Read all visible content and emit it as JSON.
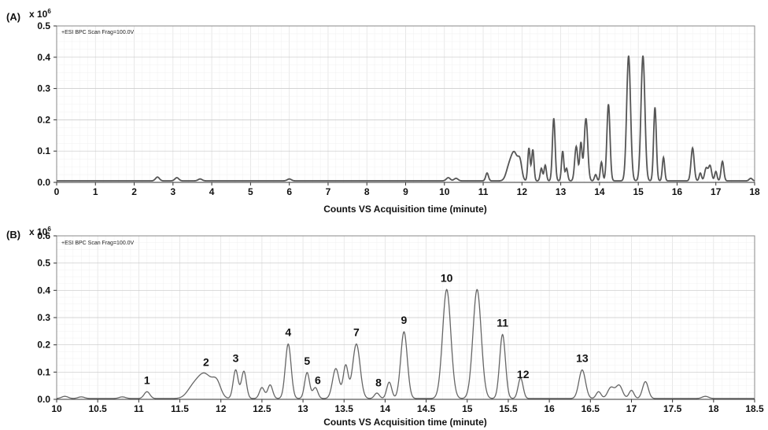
{
  "chart_data": [
    {
      "type": "line",
      "panel_label": "(A)",
      "scale_label": "x 10",
      "scale_exponent": "6",
      "legend": "+ESI BPC Scan Frag=100.0V",
      "xlabel": "Counts VS Acquisition time (minute)",
      "xlim": [
        0,
        18
      ],
      "ylim": [
        0,
        0.5
      ],
      "xticks": [
        "0",
        "1",
        "2",
        "3",
        "4",
        "5",
        "6",
        "7",
        "8",
        "9",
        "10",
        "11",
        "12",
        "13",
        "14",
        "15",
        "16",
        "17",
        "18"
      ],
      "yticks": [
        "0.0",
        "0.1",
        "0.2",
        "0.3",
        "0.4",
        "0.5"
      ],
      "grid": true,
      "line_color": "#555555",
      "baseline": 0.005,
      "peaks": [
        {
          "x": 2.6,
          "y": 0.012,
          "w": 0.05
        },
        {
          "x": 3.1,
          "y": 0.01,
          "w": 0.05
        },
        {
          "x": 3.7,
          "y": 0.006,
          "w": 0.05
        },
        {
          "x": 6.0,
          "y": 0.006,
          "w": 0.05
        },
        {
          "x": 10.1,
          "y": 0.01,
          "w": 0.05
        },
        {
          "x": 10.3,
          "y": 0.008,
          "w": 0.05
        },
        {
          "x": 11.1,
          "y": 0.025,
          "w": 0.035
        },
        {
          "x": 11.65,
          "y": 0.03,
          "w": 0.07
        },
        {
          "x": 11.8,
          "y": 0.09,
          "w": 0.09
        },
        {
          "x": 11.95,
          "y": 0.05,
          "w": 0.05
        },
        {
          "x": 12.18,
          "y": 0.105,
          "w": 0.03
        },
        {
          "x": 12.28,
          "y": 0.1,
          "w": 0.03
        },
        {
          "x": 12.5,
          "y": 0.04,
          "w": 0.03
        },
        {
          "x": 12.6,
          "y": 0.05,
          "w": 0.03
        },
        {
          "x": 12.82,
          "y": 0.2,
          "w": 0.035
        },
        {
          "x": 13.05,
          "y": 0.095,
          "w": 0.03
        },
        {
          "x": 13.15,
          "y": 0.04,
          "w": 0.03
        },
        {
          "x": 13.4,
          "y": 0.11,
          "w": 0.04
        },
        {
          "x": 13.52,
          "y": 0.12,
          "w": 0.03
        },
        {
          "x": 13.65,
          "y": 0.2,
          "w": 0.045
        },
        {
          "x": 13.9,
          "y": 0.02,
          "w": 0.03
        },
        {
          "x": 14.05,
          "y": 0.06,
          "w": 0.03
        },
        {
          "x": 14.23,
          "y": 0.245,
          "w": 0.04
        },
        {
          "x": 14.75,
          "y": 0.4,
          "w": 0.05
        },
        {
          "x": 15.12,
          "y": 0.4,
          "w": 0.05
        },
        {
          "x": 15.43,
          "y": 0.235,
          "w": 0.035
        },
        {
          "x": 15.65,
          "y": 0.075,
          "w": 0.03
        },
        {
          "x": 16.4,
          "y": 0.105,
          "w": 0.04
        },
        {
          "x": 16.6,
          "y": 0.025,
          "w": 0.03
        },
        {
          "x": 16.75,
          "y": 0.04,
          "w": 0.04
        },
        {
          "x": 16.85,
          "y": 0.048,
          "w": 0.04
        },
        {
          "x": 17.0,
          "y": 0.03,
          "w": 0.03
        },
        {
          "x": 17.17,
          "y": 0.062,
          "w": 0.035
        },
        {
          "x": 17.9,
          "y": 0.008,
          "w": 0.04
        }
      ]
    },
    {
      "type": "line",
      "panel_label": "(B)",
      "scale_label": "x 10",
      "scale_exponent": "6",
      "legend": "+ESI BPC Scan Frag=100.0V",
      "xlabel": "Counts VS Acquisition time (minute)",
      "xlim": [
        10,
        18.5
      ],
      "ylim": [
        0,
        0.6
      ],
      "xticks": [
        "10",
        "10.5",
        "11",
        "11.5",
        "12",
        "12.5",
        "13",
        "13.5",
        "14",
        "14.5",
        "15",
        "15.5",
        "16",
        "16.5",
        "17",
        "17.5",
        "18",
        "18.5"
      ],
      "yticks": [
        "0.0",
        "0.1",
        "0.2",
        "0.3",
        "0.4",
        "0.5",
        "0.6"
      ],
      "grid": true,
      "line_color": "#666666",
      "baseline": 0.003,
      "peaks": [
        {
          "x": 10.1,
          "y": 0.008,
          "w": 0.04
        },
        {
          "x": 10.3,
          "y": 0.006,
          "w": 0.04
        },
        {
          "x": 10.8,
          "y": 0.006,
          "w": 0.04
        },
        {
          "x": 11.1,
          "y": 0.025,
          "w": 0.035
        },
        {
          "x": 11.65,
          "y": 0.03,
          "w": 0.07
        },
        {
          "x": 11.8,
          "y": 0.09,
          "w": 0.09
        },
        {
          "x": 11.95,
          "y": 0.05,
          "w": 0.05
        },
        {
          "x": 12.18,
          "y": 0.105,
          "w": 0.03
        },
        {
          "x": 12.28,
          "y": 0.1,
          "w": 0.03
        },
        {
          "x": 12.5,
          "y": 0.04,
          "w": 0.03
        },
        {
          "x": 12.6,
          "y": 0.05,
          "w": 0.03
        },
        {
          "x": 12.82,
          "y": 0.2,
          "w": 0.035
        },
        {
          "x": 13.05,
          "y": 0.095,
          "w": 0.03
        },
        {
          "x": 13.15,
          "y": 0.04,
          "w": 0.03
        },
        {
          "x": 13.4,
          "y": 0.11,
          "w": 0.04
        },
        {
          "x": 13.52,
          "y": 0.12,
          "w": 0.03
        },
        {
          "x": 13.65,
          "y": 0.2,
          "w": 0.045
        },
        {
          "x": 13.9,
          "y": 0.02,
          "w": 0.03
        },
        {
          "x": 14.05,
          "y": 0.06,
          "w": 0.03
        },
        {
          "x": 14.23,
          "y": 0.245,
          "w": 0.04
        },
        {
          "x": 14.75,
          "y": 0.4,
          "w": 0.05
        },
        {
          "x": 15.12,
          "y": 0.4,
          "w": 0.05
        },
        {
          "x": 15.43,
          "y": 0.235,
          "w": 0.035
        },
        {
          "x": 15.65,
          "y": 0.075,
          "w": 0.03
        },
        {
          "x": 16.4,
          "y": 0.105,
          "w": 0.04
        },
        {
          "x": 16.6,
          "y": 0.025,
          "w": 0.03
        },
        {
          "x": 16.75,
          "y": 0.04,
          "w": 0.04
        },
        {
          "x": 16.85,
          "y": 0.048,
          "w": 0.04
        },
        {
          "x": 17.0,
          "y": 0.03,
          "w": 0.03
        },
        {
          "x": 17.17,
          "y": 0.062,
          "w": 0.035
        },
        {
          "x": 17.9,
          "y": 0.008,
          "w": 0.04
        }
      ],
      "annotations": [
        {
          "text": "1",
          "x": 11.1,
          "y": 0.025
        },
        {
          "text": "2",
          "x": 11.82,
          "y": 0.09
        },
        {
          "text": "3",
          "x": 12.18,
          "y": 0.105
        },
        {
          "text": "4",
          "x": 12.82,
          "y": 0.2
        },
        {
          "text": "5",
          "x": 13.05,
          "y": 0.095
        },
        {
          "text": "6",
          "x": 13.18,
          "y": 0.04
        },
        {
          "text": "7",
          "x": 13.65,
          "y": 0.2
        },
        {
          "text": "8",
          "x": 13.92,
          "y": 0.02
        },
        {
          "text": "9",
          "x": 14.23,
          "y": 0.245
        },
        {
          "text": "10",
          "x": 14.75,
          "y": 0.4
        },
        {
          "text": "11",
          "x": 15.43,
          "y": 0.235
        },
        {
          "text": "12",
          "x": 15.68,
          "y": 0.075
        },
        {
          "text": "13",
          "x": 16.4,
          "y": 0.105
        }
      ]
    }
  ]
}
